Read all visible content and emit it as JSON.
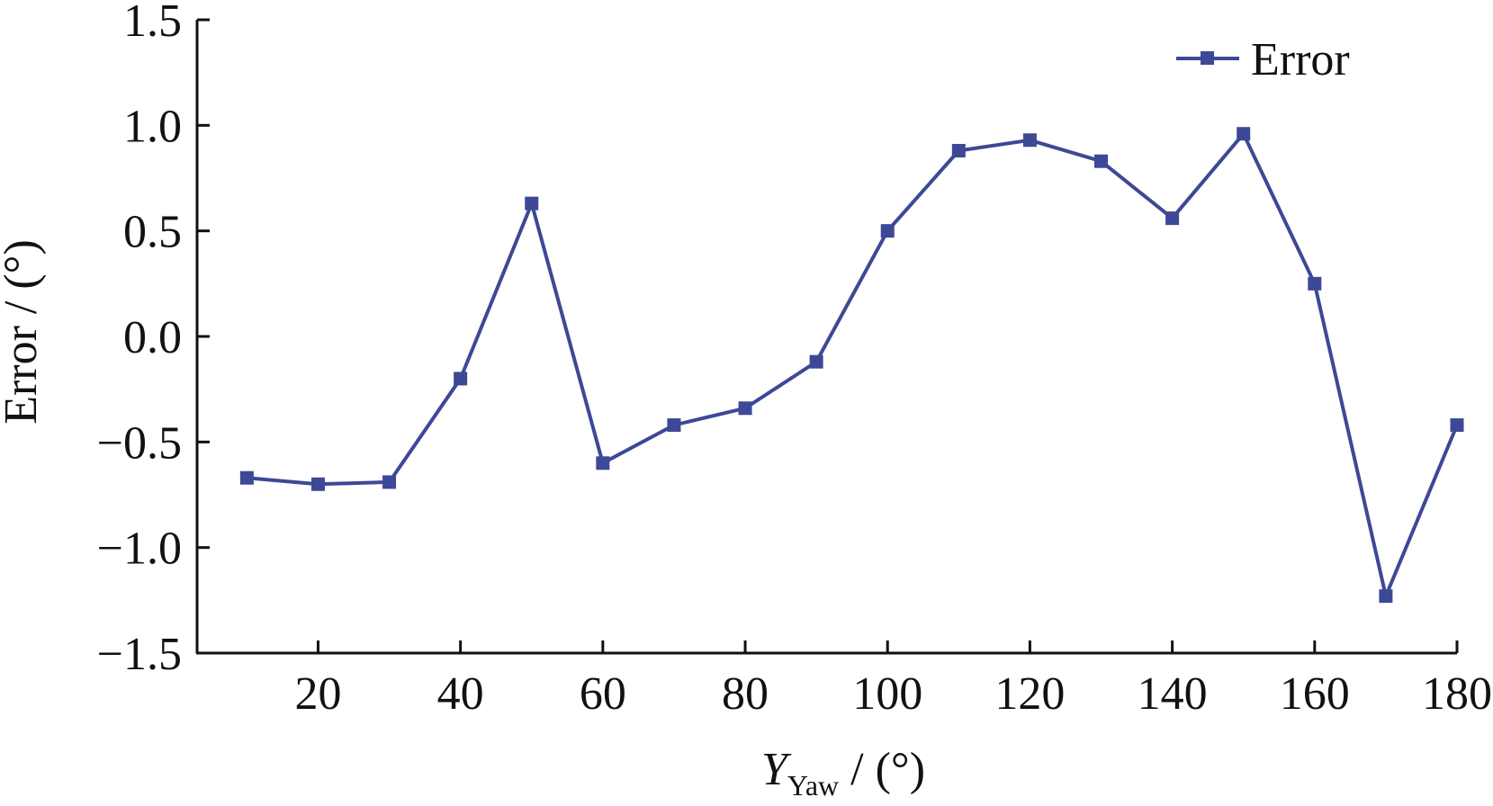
{
  "chart_data": {
    "type": "line",
    "title": "",
    "xlabel": {
      "main": "Y",
      "subscript": "Yaw",
      "unit": " / (°)"
    },
    "ylabel": "Error / (°)",
    "xlim": [
      3,
      180
    ],
    "ylim": [
      -1.5,
      1.5
    ],
    "x_ticks": [
      20,
      40,
      60,
      80,
      100,
      120,
      140,
      160,
      180
    ],
    "y_ticks": [
      1.5,
      1.0,
      0.5,
      0.0,
      -0.5,
      -1.0,
      -1.5
    ],
    "y_tick_labels": [
      "1.5",
      "1.0",
      "0.5",
      "0.0",
      "−0.5",
      "−1.0",
      "−1.5"
    ],
    "grid": false,
    "legend_position": "top-right",
    "colors": {
      "series": "#3d4896",
      "axis": "#111111"
    },
    "x": [
      10,
      20,
      30,
      40,
      50,
      60,
      70,
      80,
      90,
      100,
      110,
      120,
      130,
      140,
      150,
      160,
      170,
      180
    ],
    "series": [
      {
        "name": "Error",
        "marker": "square",
        "values": [
          -0.67,
          -0.7,
          -0.69,
          -0.2,
          0.63,
          -0.6,
          -0.42,
          -0.34,
          -0.12,
          0.5,
          0.88,
          0.93,
          0.83,
          0.56,
          0.96,
          0.25,
          -1.23,
          -0.42
        ]
      }
    ]
  }
}
